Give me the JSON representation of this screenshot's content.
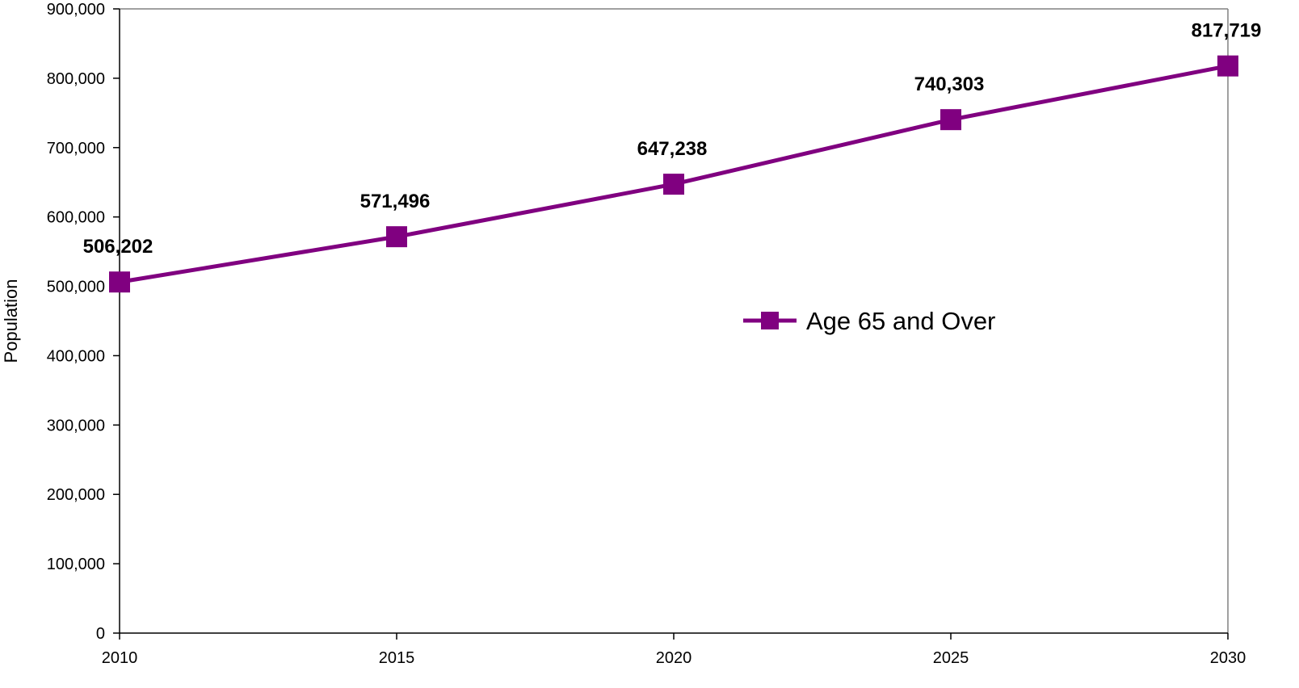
{
  "chart_data": {
    "type": "line",
    "x": [
      "2010",
      "2015",
      "2020",
      "2025",
      "2030"
    ],
    "series": [
      {
        "name": "Age 65 and Over",
        "values": [
          506202,
          571496,
          647238,
          740303,
          817719
        ],
        "labels": [
          "506,202",
          "571,496",
          "647,238",
          "740,303",
          "817,719"
        ],
        "color": "#800080"
      }
    ],
    "ylabel": "Population",
    "xlabel": "",
    "ylim": [
      0,
      900000
    ],
    "yticks": [
      0,
      100000,
      200000,
      300000,
      400000,
      500000,
      600000,
      700000,
      800000,
      900000
    ],
    "ytick_labels": [
      "0",
      "100,000",
      "200,000",
      "300,000",
      "400,000",
      "500,000",
      "600,000",
      "700,000",
      "800,000",
      "900,000"
    ],
    "grid": false,
    "legend": "center-right",
    "marker": "square"
  }
}
